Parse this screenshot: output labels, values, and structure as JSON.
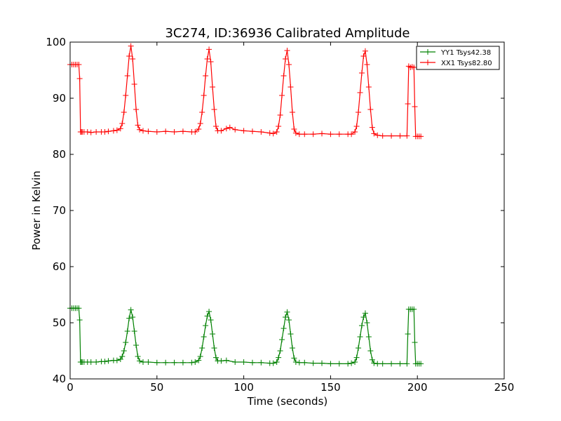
{
  "chart_data": {
    "type": "line",
    "title": "3C274, ID:36936 Calibrated Amplitude",
    "xlabel": "Time (seconds)",
    "ylabel": "Power in Kelvin",
    "xlim": [
      0,
      250
    ],
    "ylim": [
      40,
      100
    ],
    "xticks": [
      0,
      50,
      100,
      150,
      200,
      250
    ],
    "yticks": [
      40,
      50,
      60,
      70,
      80,
      90,
      100
    ],
    "grid": false,
    "legend_position": "top-right",
    "series": [
      {
        "name": "YY1 Tsys42.38",
        "color": "#008000",
        "marker": "+",
        "x": [
          0,
          1,
          2,
          3,
          4,
          5,
          5.5,
          6,
          6.5,
          7,
          8,
          10,
          12,
          15,
          18,
          20,
          22,
          25,
          27,
          29,
          30,
          31,
          32,
          33,
          34,
          35,
          36,
          37,
          38,
          39,
          40,
          42,
          45,
          50,
          55,
          60,
          65,
          70,
          72,
          74,
          75,
          76,
          77,
          78,
          79,
          80,
          81,
          82,
          83,
          84,
          85,
          87,
          90,
          95,
          100,
          105,
          110,
          115,
          117,
          119,
          120,
          121,
          122,
          123,
          124,
          125,
          126,
          127,
          128,
          129,
          130,
          132,
          135,
          140,
          145,
          150,
          155,
          160,
          162,
          164,
          165,
          166,
          167,
          168,
          169,
          170,
          171,
          172,
          173,
          174,
          175,
          177,
          180,
          185,
          190,
          194,
          194.5,
          195,
          196,
          197,
          198,
          198.5,
          199,
          200,
          201,
          202
        ],
        "values": [
          52.6,
          52.6,
          52.6,
          52.6,
          52.6,
          52.6,
          50.5,
          43.0,
          43.0,
          43.0,
          43.0,
          43.0,
          43.0,
          43.0,
          43.1,
          43.1,
          43.2,
          43.3,
          43.3,
          43.5,
          44.0,
          45.0,
          46.5,
          48.5,
          50.8,
          52.3,
          51.0,
          48.5,
          46.0,
          44.0,
          43.2,
          43.0,
          43.0,
          42.9,
          42.9,
          42.9,
          42.9,
          42.9,
          43.0,
          43.3,
          44.0,
          45.5,
          47.5,
          49.5,
          51.2,
          52.0,
          50.5,
          48.0,
          45.5,
          43.8,
          43.2,
          43.2,
          43.3,
          43.0,
          43.0,
          42.9,
          42.9,
          42.8,
          42.8,
          43.0,
          43.8,
          45.0,
          47.0,
          49.0,
          51.0,
          51.9,
          50.5,
          48.0,
          45.5,
          43.7,
          43.0,
          42.9,
          42.9,
          42.8,
          42.8,
          42.7,
          42.7,
          42.7,
          42.8,
          43.0,
          43.8,
          45.5,
          47.5,
          49.5,
          51.0,
          51.7,
          50.0,
          47.5,
          45.0,
          43.4,
          42.8,
          42.7,
          42.7,
          42.7,
          42.7,
          42.7,
          48.0,
          52.4,
          52.4,
          52.4,
          52.4,
          46.5,
          42.7,
          42.7,
          42.7,
          42.7
        ]
      },
      {
        "name": "XX1 Tsys82.80",
        "color": "#ff0000",
        "marker": "+",
        "x": [
          0,
          1,
          2,
          3,
          4,
          5,
          5.5,
          6,
          6.5,
          7,
          8,
          10,
          12,
          15,
          18,
          20,
          22,
          25,
          27,
          29,
          30,
          31,
          32,
          33,
          34,
          35,
          36,
          37,
          38,
          39,
          40,
          42,
          45,
          50,
          55,
          60,
          65,
          70,
          72,
          74,
          75,
          76,
          77,
          78,
          79,
          80,
          81,
          82,
          83,
          84,
          85,
          87,
          90,
          92,
          95,
          100,
          105,
          110,
          115,
          117,
          119,
          120,
          121,
          122,
          123,
          124,
          125,
          126,
          127,
          128,
          129,
          130,
          132,
          135,
          140,
          145,
          150,
          155,
          160,
          162,
          164,
          165,
          166,
          167,
          168,
          169,
          170,
          171,
          172,
          173,
          174,
          175,
          177,
          180,
          185,
          190,
          194,
          194.5,
          195,
          196,
          197,
          198,
          198.5,
          199,
          200,
          201,
          202
        ],
        "values": [
          96.0,
          96.0,
          96.0,
          96.0,
          96.0,
          96.0,
          93.5,
          84.0,
          84.0,
          84.0,
          84.0,
          84.0,
          83.9,
          84.0,
          84.0,
          84.0,
          84.1,
          84.2,
          84.3,
          84.6,
          85.5,
          87.5,
          90.5,
          94.0,
          97.5,
          99.3,
          97.0,
          92.5,
          88.0,
          85.2,
          84.4,
          84.2,
          84.1,
          84.0,
          84.1,
          84.0,
          84.1,
          84.0,
          84.0,
          84.5,
          85.5,
          87.5,
          90.5,
          94.0,
          97.0,
          98.7,
          96.5,
          92.0,
          88.0,
          85.0,
          84.2,
          84.2,
          84.6,
          84.8,
          84.4,
          84.2,
          84.1,
          84.0,
          83.8,
          83.7,
          84.0,
          85.0,
          87.0,
          90.5,
          94.0,
          97.0,
          98.5,
          96.0,
          92.0,
          87.5,
          84.5,
          83.8,
          83.6,
          83.6,
          83.6,
          83.7,
          83.6,
          83.6,
          83.6,
          83.6,
          84.0,
          85.0,
          87.5,
          91.0,
          94.5,
          97.5,
          98.4,
          96.0,
          92.0,
          88.0,
          84.8,
          83.7,
          83.4,
          83.3,
          83.3,
          83.3,
          83.3,
          89.0,
          95.7,
          95.5,
          95.6,
          95.5,
          88.5,
          83.2,
          83.2,
          83.2,
          83.2
        ]
      }
    ]
  }
}
